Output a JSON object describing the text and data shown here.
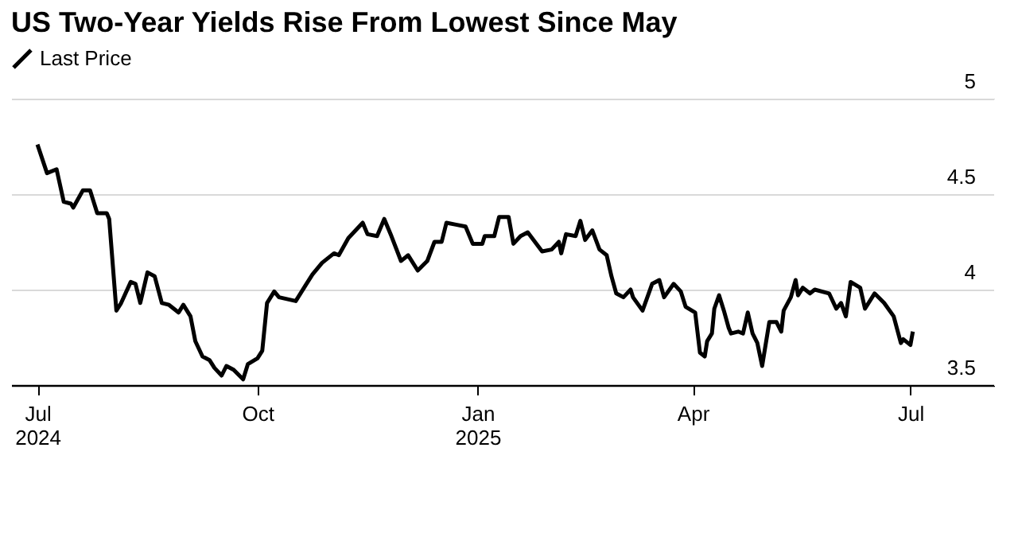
{
  "chart_data": {
    "type": "line",
    "title": "US Two-Year Yields Rise From Lowest Since May",
    "x": [
      "2024-07-01",
      "2024-07-05",
      "2024-07-09",
      "2024-07-12",
      "2024-07-15",
      "2024-07-16",
      "2024-07-20",
      "2024-07-23",
      "2024-07-26",
      "2024-07-30",
      "2024-07-31",
      "2024-08-03",
      "2024-08-05",
      "2024-08-09",
      "2024-08-11",
      "2024-08-13",
      "2024-08-16",
      "2024-08-19",
      "2024-08-22",
      "2024-08-25",
      "2024-08-29",
      "2024-08-31",
      "2024-09-03",
      "2024-09-05",
      "2024-09-08",
      "2024-09-11",
      "2024-09-13",
      "2024-09-16",
      "2024-09-18",
      "2024-09-21",
      "2024-09-25",
      "2024-09-27",
      "2024-10-01",
      "2024-10-03",
      "2024-10-05",
      "2024-10-08",
      "2024-10-10",
      "2024-10-17",
      "2024-10-21",
      "2024-10-24",
      "2024-10-28",
      "2024-11-02",
      "2024-11-04",
      "2024-11-08",
      "2024-11-14",
      "2024-11-16",
      "2024-11-20",
      "2024-11-23",
      "2024-11-26",
      "2024-11-30",
      "2024-12-03",
      "2024-12-07",
      "2024-12-11",
      "2024-12-14",
      "2024-12-17",
      "2024-12-19",
      "2024-12-23",
      "2024-12-27",
      "2024-12-30",
      "2025-01-03",
      "2025-01-04",
      "2025-01-08",
      "2025-01-10",
      "2025-01-14",
      "2025-01-16",
      "2025-01-19",
      "2025-01-22",
      "2025-01-28",
      "2025-02-01",
      "2025-02-04",
      "2025-02-05",
      "2025-02-07",
      "2025-02-11",
      "2025-02-13",
      "2025-02-15",
      "2025-02-18",
      "2025-02-21",
      "2025-02-24",
      "2025-02-26",
      "2025-02-28",
      "2025-03-03",
      "2025-03-06",
      "2025-03-07",
      "2025-03-11",
      "2025-03-13",
      "2025-03-15",
      "2025-03-18",
      "2025-03-20",
      "2025-03-24",
      "2025-03-27",
      "2025-03-29",
      "2025-04-02",
      "2025-04-04",
      "2025-04-06",
      "2025-04-07",
      "2025-04-09",
      "2025-04-10",
      "2025-04-12",
      "2025-04-14",
      "2025-04-16",
      "2025-04-17",
      "2025-04-20",
      "2025-04-22",
      "2025-04-24",
      "2025-04-26",
      "2025-04-28",
      "2025-04-30",
      "2025-05-03",
      "2025-05-06",
      "2025-05-08",
      "2025-05-09",
      "2025-05-12",
      "2025-05-14",
      "2025-05-15",
      "2025-05-17",
      "2025-05-20",
      "2025-05-22",
      "2025-05-28",
      "2025-05-31",
      "2025-06-02",
      "2025-06-04",
      "2025-06-06",
      "2025-06-10",
      "2025-06-12",
      "2025-06-16",
      "2025-06-20",
      "2025-06-24",
      "2025-06-27",
      "2025-06-28",
      "2025-07-01",
      "2025-07-02"
    ],
    "series": [
      {
        "name": "Last Price",
        "color": "#000000",
        "values": [
          4.76,
          4.61,
          4.63,
          4.46,
          4.45,
          4.43,
          4.52,
          4.52,
          4.4,
          4.4,
          4.37,
          3.89,
          3.93,
          4.04,
          4.03,
          3.93,
          4.09,
          4.07,
          3.93,
          3.92,
          3.88,
          3.92,
          3.86,
          3.73,
          3.65,
          3.63,
          3.59,
          3.55,
          3.6,
          3.58,
          3.53,
          3.61,
          3.64,
          3.68,
          3.93,
          3.99,
          3.96,
          3.94,
          4.02,
          4.08,
          4.14,
          4.19,
          4.18,
          4.27,
          4.35,
          4.29,
          4.28,
          4.37,
          4.28,
          4.15,
          4.18,
          4.1,
          4.15,
          4.25,
          4.25,
          4.35,
          4.34,
          4.33,
          4.24,
          4.24,
          4.28,
          4.28,
          4.38,
          4.38,
          4.24,
          4.28,
          4.3,
          4.2,
          4.21,
          4.25,
          4.19,
          4.29,
          4.28,
          4.36,
          4.26,
          4.31,
          4.21,
          4.18,
          4.07,
          3.98,
          3.96,
          4.0,
          3.96,
          3.89,
          3.96,
          4.03,
          4.05,
          3.96,
          4.03,
          3.99,
          3.91,
          3.88,
          3.67,
          3.65,
          3.73,
          3.77,
          3.9,
          3.97,
          3.89,
          3.8,
          3.77,
          3.78,
          3.77,
          3.88,
          3.77,
          3.72,
          3.6,
          3.83,
          3.83,
          3.78,
          3.89,
          3.96,
          4.05,
          3.97,
          4.01,
          3.98,
          4.0,
          3.98,
          3.9,
          3.93,
          3.86,
          4.04,
          4.01,
          3.9,
          3.98,
          3.93,
          3.86,
          3.72,
          3.74,
          3.71,
          3.78
        ]
      }
    ],
    "xlim": [
      "2024-06-20",
      "2025-08-05"
    ],
    "xticks": [
      {
        "value": "2024-07-01",
        "label": "Jul 2024"
      },
      {
        "value": "2024-10-01",
        "label": "Oct"
      },
      {
        "value": "2025-01-01",
        "label": "Jan 2025"
      },
      {
        "value": "2025-04-01",
        "label": "Apr"
      },
      {
        "value": "2025-07-01",
        "label": "Jul"
      }
    ],
    "ylim": [
      3.5,
      5
    ],
    "yticks": [
      3.5,
      4,
      4.5,
      5
    ],
    "grid": "y",
    "legend": "top left",
    "marker": "none",
    "line_style": "solid"
  }
}
